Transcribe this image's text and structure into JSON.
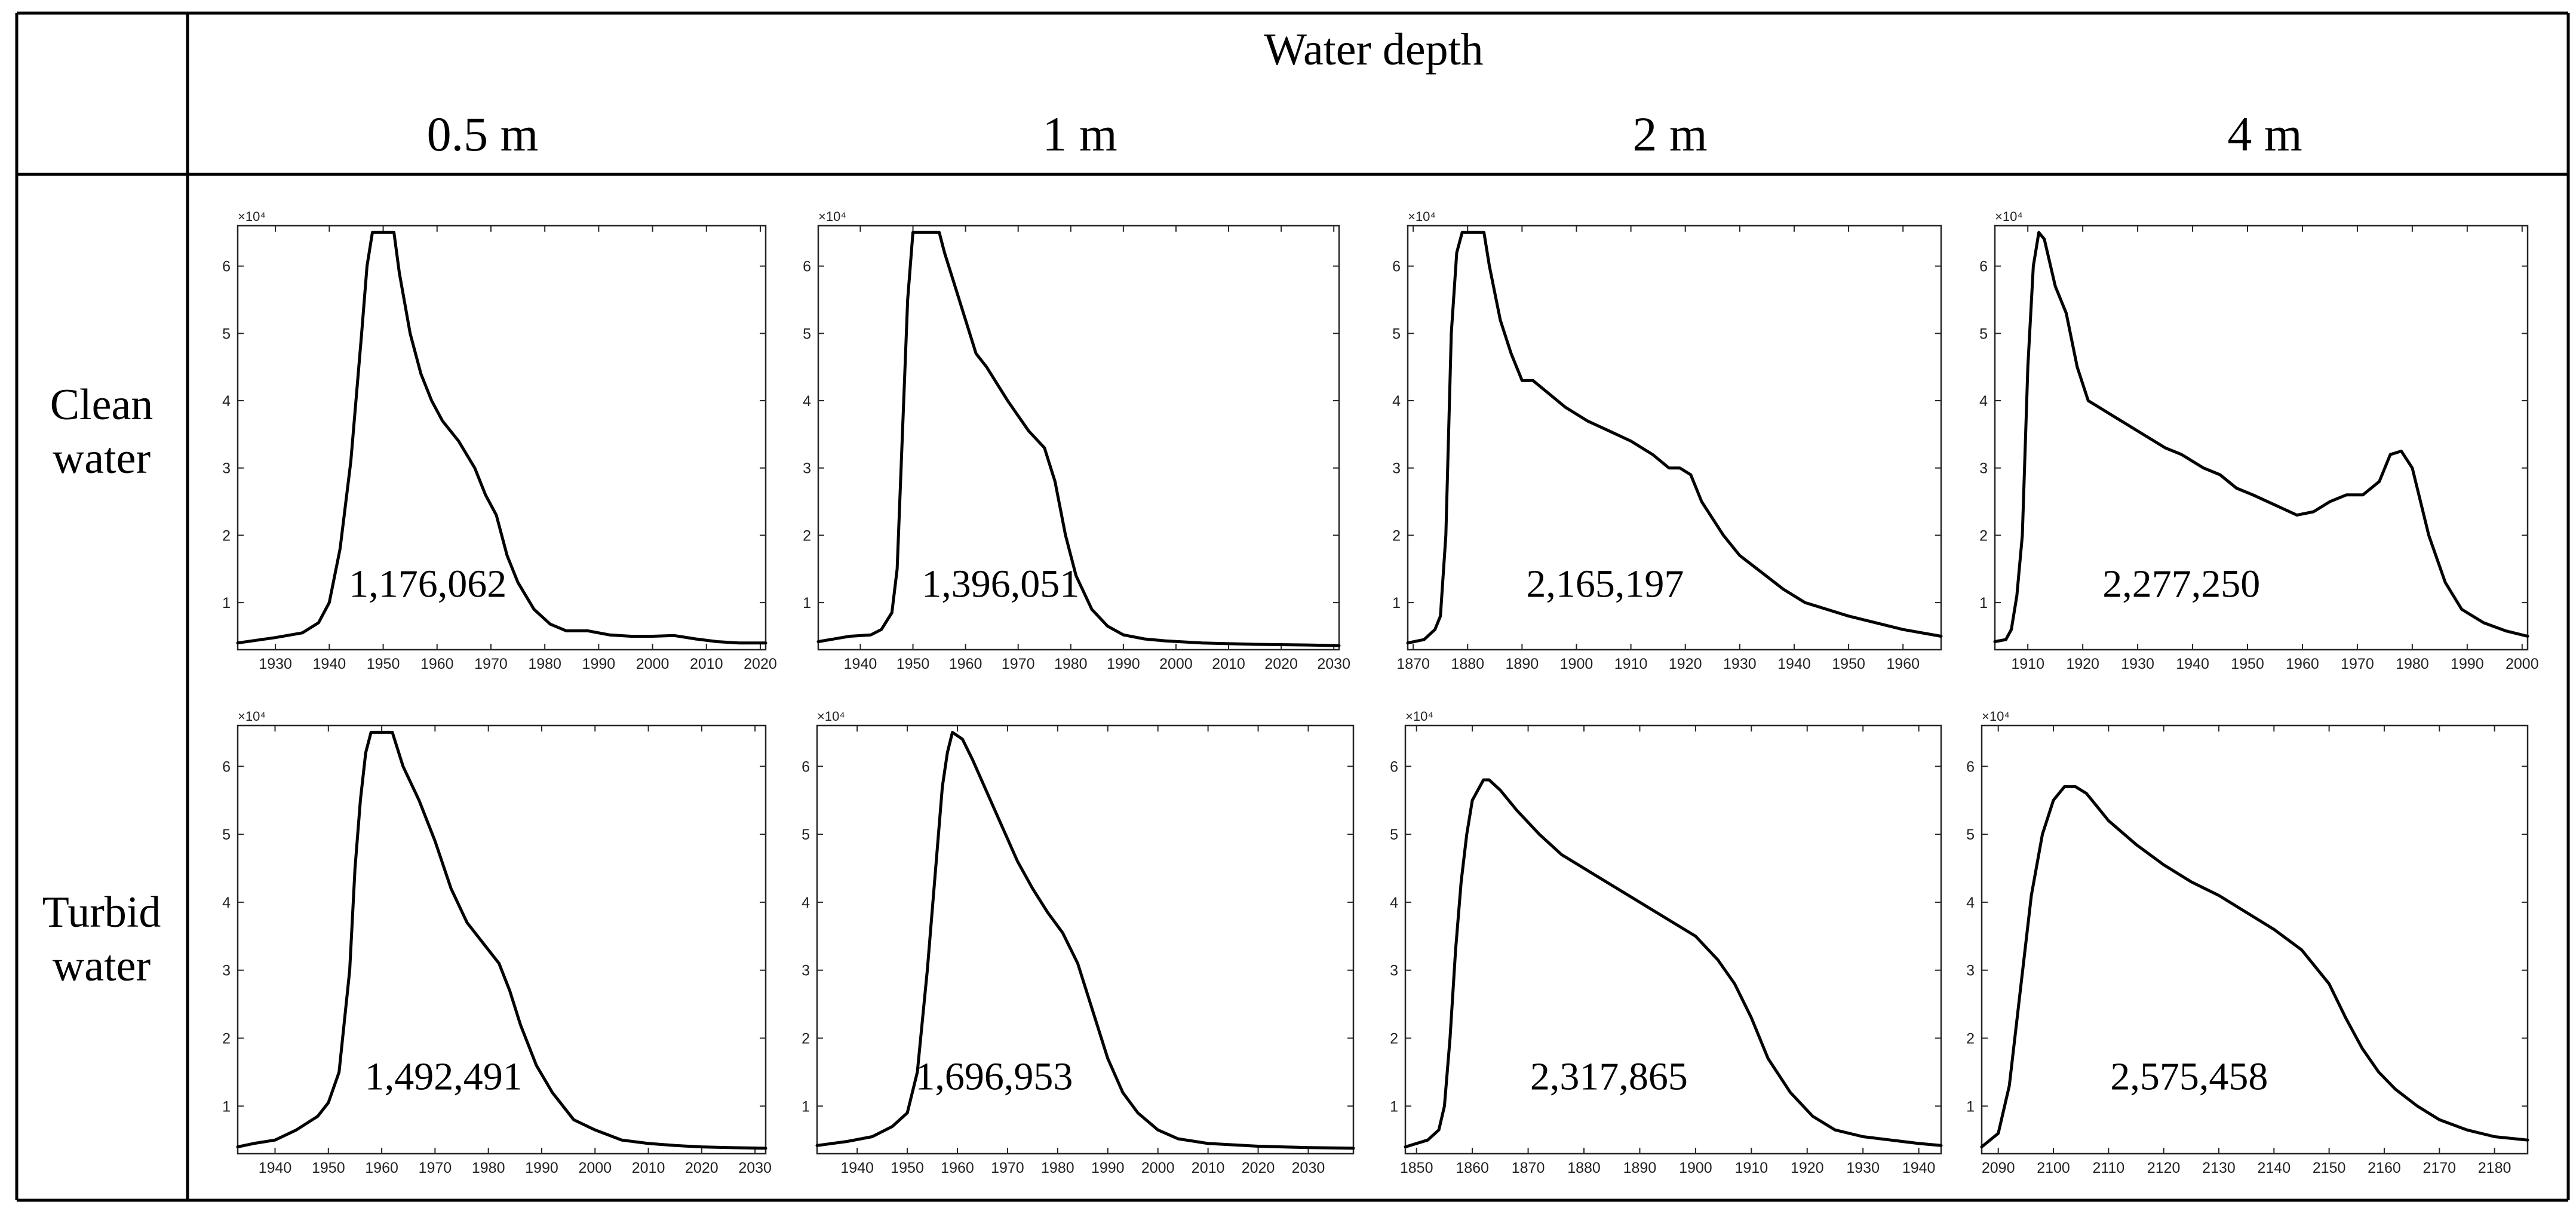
{
  "header": {
    "title": "Water depth",
    "columns": [
      "0.5 m",
      "1 m",
      "2 m",
      "4 m"
    ]
  },
  "rows": [
    {
      "label_line1": "Clean",
      "label_line2": "water"
    },
    {
      "label_line1": "Turbid",
      "label_line2": "water"
    }
  ],
  "chart_data": [
    {
      "type": "line",
      "condition": "Clean water",
      "depth": "0.5 m",
      "area": "1,176,062",
      "xlim": [
        1923,
        2021
      ],
      "ylim": [
        3000,
        66000
      ],
      "y_exponent": "×10⁴",
      "xticks": [
        1930,
        1940,
        1950,
        1960,
        1970,
        1980,
        1990,
        2000,
        2010,
        2020
      ],
      "yticks": [
        10000,
        20000,
        30000,
        40000,
        50000,
        60000
      ],
      "ytick_labels": [
        "1",
        "2",
        "3",
        "4",
        "5",
        "6"
      ],
      "x": [
        1923,
        1930,
        1935,
        1938,
        1940,
        1942,
        1944,
        1946,
        1947,
        1948,
        1952,
        1953,
        1955,
        1957,
        1959,
        1961,
        1964,
        1967,
        1969,
        1971,
        1973,
        1975,
        1978,
        1981,
        1984,
        1988,
        1992,
        1996,
        2000,
        2004,
        2008,
        2012,
        2016,
        2021
      ],
      "y": [
        4000,
        4800,
        5500,
        7000,
        10000,
        18000,
        31000,
        50000,
        60000,
        65000,
        65000,
        59000,
        50000,
        44000,
        40000,
        37000,
        34000,
        30000,
        26000,
        23000,
        17000,
        13000,
        9000,
        6800,
        5800,
        5800,
        5200,
        5000,
        5000,
        5100,
        4600,
        4200,
        4000,
        4000
      ]
    },
    {
      "type": "line",
      "condition": "Clean water",
      "depth": "1 m",
      "area": "1,396,051",
      "xlim": [
        1932,
        2031
      ],
      "ylim": [
        3000,
        66000
      ],
      "y_exponent": "×10⁴",
      "xticks": [
        1940,
        1950,
        1960,
        1970,
        1980,
        1990,
        2000,
        2010,
        2020,
        2030
      ],
      "yticks": [
        10000,
        20000,
        30000,
        40000,
        50000,
        60000
      ],
      "ytick_labels": [
        "1",
        "2",
        "3",
        "4",
        "5",
        "6"
      ],
      "x": [
        1932,
        1938,
        1942,
        1944,
        1946,
        1947,
        1948,
        1949,
        1950,
        1951,
        1955,
        1956,
        1958,
        1960,
        1962,
        1964,
        1968,
        1972,
        1975,
        1977,
        1979,
        1981,
        1984,
        1987,
        1990,
        1994,
        1998,
        2005,
        2015,
        2025,
        2031
      ],
      "y": [
        4200,
        5000,
        5200,
        6000,
        8500,
        15000,
        35000,
        55000,
        65000,
        65000,
        65000,
        62000,
        57000,
        52000,
        47000,
        45000,
        40000,
        35500,
        33000,
        28000,
        20000,
        14000,
        9000,
        6500,
        5200,
        4600,
        4300,
        4000,
        3800,
        3700,
        3600
      ]
    },
    {
      "type": "line",
      "condition": "Clean water",
      "depth": "2 m",
      "area": "2,165,197",
      "xlim": [
        1869,
        1967
      ],
      "ylim": [
        3000,
        66000
      ],
      "y_exponent": "×10⁴",
      "xticks": [
        1870,
        1880,
        1890,
        1900,
        1910,
        1920,
        1930,
        1940,
        1950,
        1960
      ],
      "yticks": [
        10000,
        20000,
        30000,
        40000,
        50000,
        60000
      ],
      "ytick_labels": [
        "1",
        "2",
        "3",
        "4",
        "5",
        "6"
      ],
      "x": [
        1869,
        1872,
        1874,
        1875,
        1876,
        1877,
        1878,
        1879,
        1883,
        1884,
        1886,
        1888,
        1890,
        1892,
        1895,
        1898,
        1902,
        1906,
        1910,
        1914,
        1917,
        1919,
        1921,
        1923,
        1927,
        1930,
        1934,
        1938,
        1942,
        1946,
        1950,
        1955,
        1960,
        1967
      ],
      "y": [
        4000,
        4500,
        6000,
        8000,
        20000,
        50000,
        62000,
        65000,
        65000,
        60000,
        52000,
        47000,
        43000,
        43000,
        41000,
        39000,
        37000,
        35500,
        34000,
        32000,
        30000,
        30000,
        29000,
        25000,
        20000,
        17000,
        14500,
        12000,
        10000,
        9000,
        8000,
        7000,
        6000,
        5000
      ]
    },
    {
      "type": "line",
      "condition": "Clean water",
      "depth": "4 m",
      "area": "2,277,250",
      "xlim": [
        1904,
        2001
      ],
      "ylim": [
        3000,
        66000
      ],
      "y_exponent": "×10⁴",
      "xticks": [
        1910,
        1920,
        1930,
        1940,
        1950,
        1960,
        1970,
        1980,
        1990,
        2000
      ],
      "yticks": [
        10000,
        20000,
        30000,
        40000,
        50000,
        60000
      ],
      "ytick_labels": [
        "1",
        "2",
        "3",
        "4",
        "5",
        "6"
      ],
      "x": [
        1904,
        1906,
        1907,
        1908,
        1909,
        1910,
        1911,
        1912,
        1913,
        1915,
        1917,
        1919,
        1921,
        1923,
        1926,
        1929,
        1932,
        1935,
        1938,
        1942,
        1945,
        1948,
        1951,
        1955,
        1959,
        1962,
        1965,
        1968,
        1971,
        1974,
        1976,
        1978,
        1980,
        1983,
        1986,
        1989,
        1993,
        1997,
        2001
      ],
      "y": [
        4200,
        4500,
        6000,
        11000,
        20000,
        45000,
        60000,
        65000,
        64000,
        57000,
        53000,
        45000,
        40000,
        39000,
        37500,
        36000,
        34500,
        33000,
        32000,
        30000,
        29000,
        27000,
        26000,
        24500,
        23000,
        23500,
        25000,
        26000,
        26000,
        28000,
        32000,
        32500,
        30000,
        20000,
        13000,
        9000,
        7000,
        5800,
        5000
      ]
    },
    {
      "type": "line",
      "condition": "Turbid water",
      "depth": "0.5 m",
      "area": "1,492,491",
      "xlim": [
        1933,
        2032
      ],
      "ylim": [
        3000,
        66000
      ],
      "y_exponent": "×10⁴",
      "xticks": [
        1940,
        1950,
        1960,
        1970,
        1980,
        1990,
        2000,
        2010,
        2020,
        2030
      ],
      "yticks": [
        10000,
        20000,
        30000,
        40000,
        50000,
        60000
      ],
      "ytick_labels": [
        "1",
        "2",
        "3",
        "4",
        "5",
        "6"
      ],
      "x": [
        1933,
        1936,
        1940,
        1944,
        1948,
        1950,
        1952,
        1954,
        1955,
        1956,
        1957,
        1958,
        1962,
        1964,
        1967,
        1970,
        1973,
        1976,
        1979,
        1982,
        1984,
        1986,
        1989,
        1992,
        1996,
        2000,
        2005,
        2010,
        2015,
        2020,
        2025,
        2032
      ],
      "y": [
        4000,
        4500,
        5000,
        6500,
        8500,
        10500,
        15000,
        30000,
        45000,
        55000,
        62000,
        65000,
        65000,
        60000,
        55000,
        49000,
        42000,
        37000,
        34000,
        31000,
        27000,
        22000,
        16000,
        12000,
        8000,
        6500,
        5000,
        4500,
        4200,
        4000,
        3900,
        3800
      ]
    },
    {
      "type": "line",
      "condition": "Turbid water",
      "depth": "1 m",
      "area": "1,696,953",
      "xlim": [
        1932,
        2039
      ],
      "ylim": [
        3000,
        66000
      ],
      "y_exponent": "×10⁴",
      "xticks": [
        1940,
        1950,
        1960,
        1970,
        1980,
        1990,
        2000,
        2010,
        2020,
        2030
      ],
      "yticks": [
        10000,
        20000,
        30000,
        40000,
        50000,
        60000
      ],
      "ytick_labels": [
        "1",
        "2",
        "3",
        "4",
        "5",
        "6"
      ],
      "x": [
        1932,
        1938,
        1943,
        1947,
        1950,
        1952,
        1954,
        1956,
        1957,
        1958,
        1959,
        1961,
        1963,
        1966,
        1969,
        1972,
        1975,
        1978,
        1981,
        1984,
        1987,
        1990,
        1993,
        1996,
        2000,
        2004,
        2010,
        2020,
        2030,
        2039
      ],
      "y": [
        4200,
        4800,
        5500,
        7000,
        9000,
        15000,
        30000,
        48000,
        57000,
        62000,
        65000,
        64000,
        61000,
        56000,
        51000,
        46000,
        42000,
        38500,
        35500,
        31000,
        24000,
        17000,
        12000,
        9000,
        6500,
        5200,
        4500,
        4100,
        3900,
        3800
      ]
    },
    {
      "type": "line",
      "condition": "Turbid water",
      "depth": "2 m",
      "area": "2,317,865",
      "xlim": [
        1848,
        1944
      ],
      "ylim": [
        3000,
        66000
      ],
      "y_exponent": "×10⁴",
      "xticks": [
        1850,
        1860,
        1870,
        1880,
        1890,
        1900,
        1910,
        1920,
        1930,
        1940
      ],
      "yticks": [
        10000,
        20000,
        30000,
        40000,
        50000,
        60000
      ],
      "ytick_labels": [
        "1",
        "2",
        "3",
        "4",
        "5",
        "6"
      ],
      "x": [
        1848,
        1852,
        1854,
        1855,
        1856,
        1857,
        1858,
        1859,
        1860,
        1862,
        1863,
        1865,
        1868,
        1872,
        1876,
        1880,
        1885,
        1890,
        1895,
        1900,
        1904,
        1907,
        1910,
        1913,
        1917,
        1921,
        1925,
        1930,
        1935,
        1940,
        1944
      ],
      "y": [
        4000,
        5000,
        6500,
        10000,
        20000,
        33000,
        43000,
        50000,
        55000,
        58000,
        58000,
        56500,
        53500,
        50000,
        47000,
        45000,
        42500,
        40000,
        37500,
        35000,
        31500,
        28000,
        23000,
        17000,
        12000,
        8500,
        6500,
        5500,
        5000,
        4500,
        4200
      ]
    },
    {
      "type": "line",
      "condition": "Turbid water",
      "depth": "4 m",
      "area": "2,575,458",
      "xlim": [
        2087,
        2186
      ],
      "ylim": [
        3000,
        66000
      ],
      "y_exponent": "×10⁴",
      "xticks": [
        2090,
        2100,
        2110,
        2120,
        2130,
        2140,
        2150,
        2160,
        2170,
        2180
      ],
      "yticks": [
        10000,
        20000,
        30000,
        40000,
        50000,
        60000
      ],
      "ytick_labels": [
        "1",
        "2",
        "3",
        "4",
        "5",
        "6"
      ],
      "x": [
        2087,
        2090,
        2092,
        2094,
        2096,
        2098,
        2100,
        2102,
        2104,
        2106,
        2108,
        2110,
        2115,
        2120,
        2125,
        2130,
        2135,
        2140,
        2145,
        2150,
        2153,
        2156,
        2159,
        2162,
        2166,
        2170,
        2175,
        2180,
        2186
      ],
      "y": [
        4000,
        6000,
        13000,
        27000,
        41000,
        50000,
        55000,
        57000,
        57000,
        56000,
        54000,
        52000,
        48500,
        45500,
        43000,
        41000,
        38500,
        36000,
        33000,
        28000,
        23000,
        18500,
        15000,
        12500,
        10000,
        8000,
        6500,
        5500,
        5000
      ]
    }
  ]
}
